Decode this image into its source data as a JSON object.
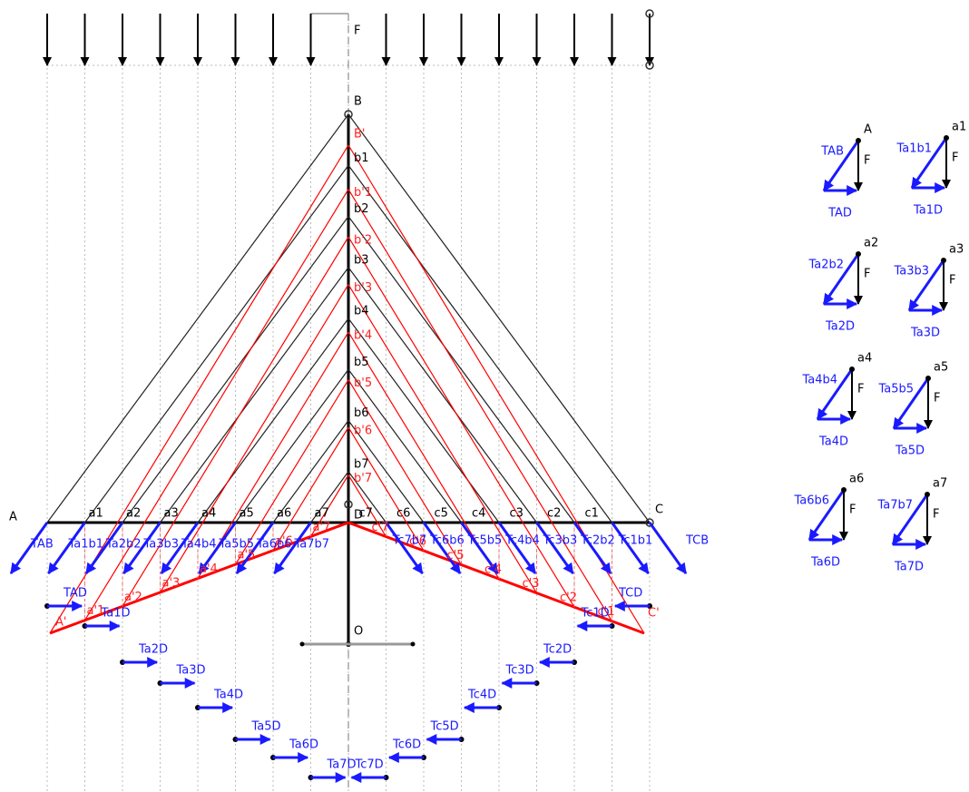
{
  "load_label": "F",
  "points": {
    "A": "A",
    "B": "B",
    "C": "C",
    "D": "D",
    "O": "O",
    "A_prime": "A'",
    "B_prime": "B'",
    "C_prime": "C'"
  },
  "left_nodes": [
    "a1",
    "a2",
    "a3",
    "a4",
    "a5",
    "a6",
    "a7"
  ],
  "right_nodes": [
    "c1",
    "c2",
    "c3",
    "c4",
    "c5",
    "c6",
    "c7"
  ],
  "apex_nodes": [
    "b1",
    "b2",
    "b3",
    "b4",
    "b5",
    "b6",
    "b7"
  ],
  "prime_apex_nodes": [
    "b'1",
    "b'2",
    "b'3",
    "b'4",
    "b'5",
    "b'6",
    "b'7"
  ],
  "prime_left_nodes": [
    "a'1",
    "a'2",
    "a'3",
    "a'4",
    "a'5",
    "a'6",
    "a'7"
  ],
  "prime_right_nodes": [
    "c'1",
    "c'2",
    "c'3",
    "c'4",
    "c'5",
    "c'6",
    "c'7"
  ],
  "diagonal_forces_left": [
    "TAB",
    "Ta1b1",
    "Ta2b2",
    "Ta3b3",
    "Ta4b4",
    "Ta5b5",
    "Ta6b6",
    "Ta7b7"
  ],
  "diagonal_forces_right": [
    "TCB",
    "Tc1b1",
    "Tc2b2",
    "Tc3b3",
    "Tc4b4",
    "Tc5b5",
    "Tc6b6",
    "Tc7b7"
  ],
  "bottom_forces_left": [
    "TAD",
    "Ta1D",
    "Ta2D",
    "Ta3D",
    "Ta4D",
    "Ta5D",
    "Ta6D",
    "Ta7D"
  ],
  "bottom_forces_right": [
    "TCD",
    "Tc1D",
    "Tc2D",
    "Tc3D",
    "Tc4D",
    "Tc5D",
    "Tc6D",
    "Tc7D"
  ],
  "force_polygons": [
    {
      "node": "A",
      "load": "F",
      "diagonal": "TAB",
      "bottom": "TAD"
    },
    {
      "node": "a1",
      "load": "F",
      "diagonal": "Ta1b1",
      "bottom": "Ta1D"
    },
    {
      "node": "a2",
      "load": "F",
      "diagonal": "Ta2b2",
      "bottom": "Ta2D"
    },
    {
      "node": "a3",
      "load": "F",
      "diagonal": "Ta3b3",
      "bottom": "Ta3D"
    },
    {
      "node": "a4",
      "load": "F",
      "diagonal": "Ta4b4",
      "bottom": "Ta4D"
    },
    {
      "node": "a5",
      "load": "F",
      "diagonal": "Ta5b5",
      "bottom": "Ta5D"
    },
    {
      "node": "a6",
      "load": "F",
      "diagonal": "Ta6b6",
      "bottom": "Ta6D"
    },
    {
      "node": "a7",
      "load": "F",
      "diagonal": "Ta7b7",
      "bottom": "Ta7D"
    }
  ]
}
